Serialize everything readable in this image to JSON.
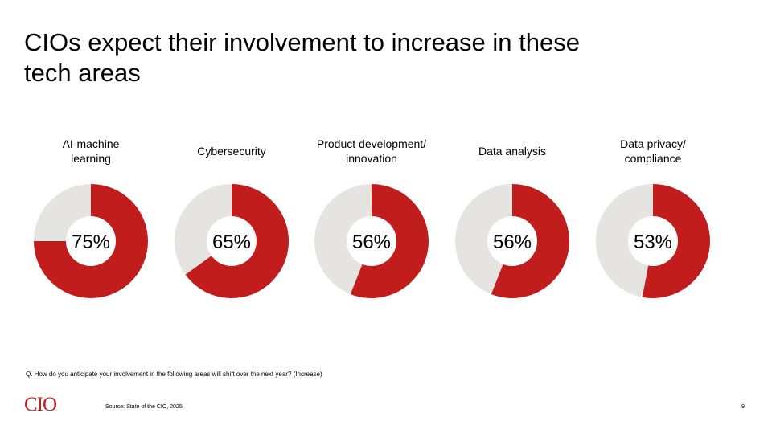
{
  "slide": {
    "title": "CIOs expect their involvement to increase in these tech areas",
    "question": "Q. How do you anticipate your involvement in the following areas will shift over the next year? (Increase)",
    "logo": "CIO",
    "source": "Source: State of the CIO, 2025",
    "page_number": "9"
  },
  "chart_data": {
    "type": "pie",
    "variant": "donut",
    "colors": {
      "value": "#c11d1d",
      "remainder": "#e5e4e0"
    },
    "items": [
      {
        "category": "AI-machine\nlearning",
        "value": 75,
        "label": "75%"
      },
      {
        "category": "Cybersecurity",
        "value": 65,
        "label": "65%"
      },
      {
        "category": "Product development/\ninnovation",
        "value": 56,
        "label": "56%"
      },
      {
        "category": "Data analysis",
        "value": 56,
        "label": "56%"
      },
      {
        "category": "Data privacy/\ncompliance",
        "value": 53,
        "label": "53%"
      }
    ]
  }
}
